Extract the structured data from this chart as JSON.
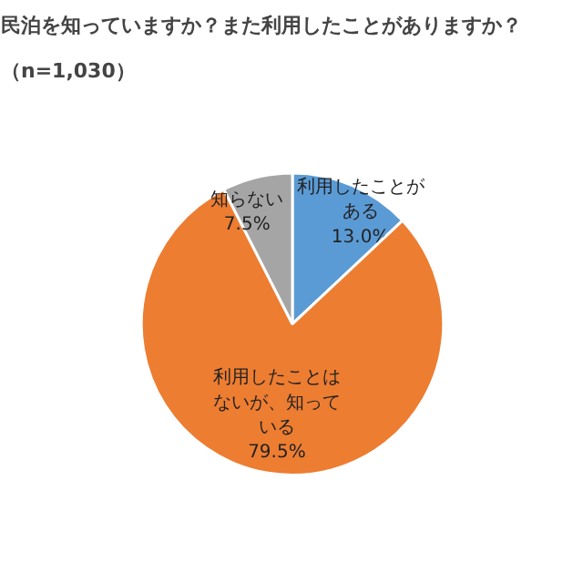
{
  "chart_data": {
    "type": "pie",
    "title": "民泊を知っていますか？また利用したことがありますか？",
    "subtitle": "（n=1,030）",
    "categories": [
      "利用したことがある",
      "利用したことはないが、知っている",
      "知らない"
    ],
    "values": [
      13.0,
      79.5,
      7.5
    ],
    "colors": [
      "#5b9bd5",
      "#ed7d31",
      "#a5a5a5"
    ],
    "value_labels": [
      "13.0%",
      "79.5%",
      "7.5%"
    ],
    "legend": false
  }
}
